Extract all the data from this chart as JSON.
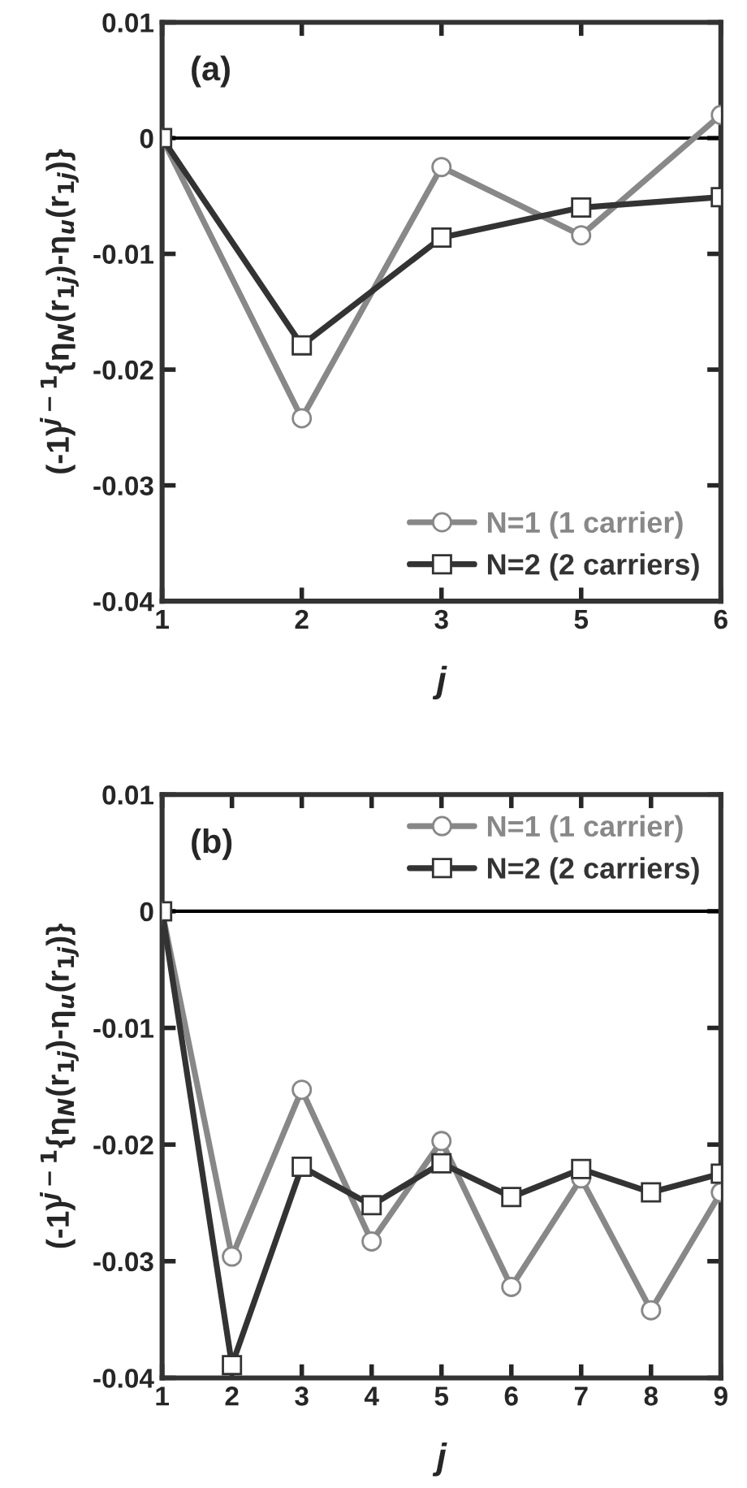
{
  "chart_data": [
    {
      "type": "line",
      "annotations": [
        "(a)"
      ],
      "xlabel": "j",
      "ylabel": "(-1)$^{j−1}${η$_{N}$(r$_{1j}$)-η$_{u}$(r$_{1j}$)}",
      "categories": [
        "1",
        "2",
        "3",
        "5",
        "6"
      ],
      "series": [
        {
          "name": "N=1 (1 carrier)",
          "color": "#888888",
          "marker": "circle",
          "values": [
            0,
            -0.0242,
            -0.0025,
            -0.0084,
            0.002
          ]
        },
        {
          "name": "N=2 (2 carriers)",
          "color": "#333333",
          "marker": "square",
          "values": [
            0,
            -0.0179,
            -0.0086,
            -0.006,
            -0.0051
          ]
        }
      ],
      "ylim": [
        -0.04,
        0.01
      ],
      "yticks": [
        -0.04,
        -0.03,
        -0.02,
        -0.01,
        0,
        0.01
      ],
      "ref_lines": [
        {
          "axis": "y",
          "value": 0,
          "color": "#000000"
        }
      ],
      "legend": "lower right",
      "grid": false
    },
    {
      "type": "line",
      "annotations": [
        "(b)"
      ],
      "xlabel": "j",
      "ylabel": "(-1)$^{j−1}${η$_{N}$(r$_{1j}$)-η$_{u}$(r$_{1j}$)}",
      "x": [
        1,
        2,
        3,
        4,
        5,
        6,
        7,
        8,
        9
      ],
      "series": [
        {
          "name": "N=1 (1 carrier)",
          "color": "#888888",
          "marker": "circle",
          "values": [
            0,
            -0.0296,
            -0.0153,
            -0.0283,
            -0.0197,
            -0.0322,
            -0.0229,
            -0.0342,
            -0.0241
          ]
        },
        {
          "name": "N=2 (2 carriers)",
          "color": "#333333",
          "marker": "square",
          "values": [
            0,
            -0.0389,
            -0.0219,
            -0.0252,
            -0.0216,
            -0.0245,
            -0.0221,
            -0.0241,
            -0.0225
          ]
        }
      ],
      "xlim": [
        1,
        9
      ],
      "xticks": [
        1,
        2,
        3,
        4,
        5,
        6,
        7,
        8,
        9
      ],
      "ylim": [
        -0.04,
        0.01
      ],
      "yticks": [
        -0.04,
        -0.03,
        -0.02,
        -0.01,
        0,
        0.01
      ],
      "ref_lines": [
        {
          "axis": "y",
          "value": 0,
          "color": "#000000"
        }
      ],
      "legend": "upper right",
      "grid": false
    }
  ]
}
